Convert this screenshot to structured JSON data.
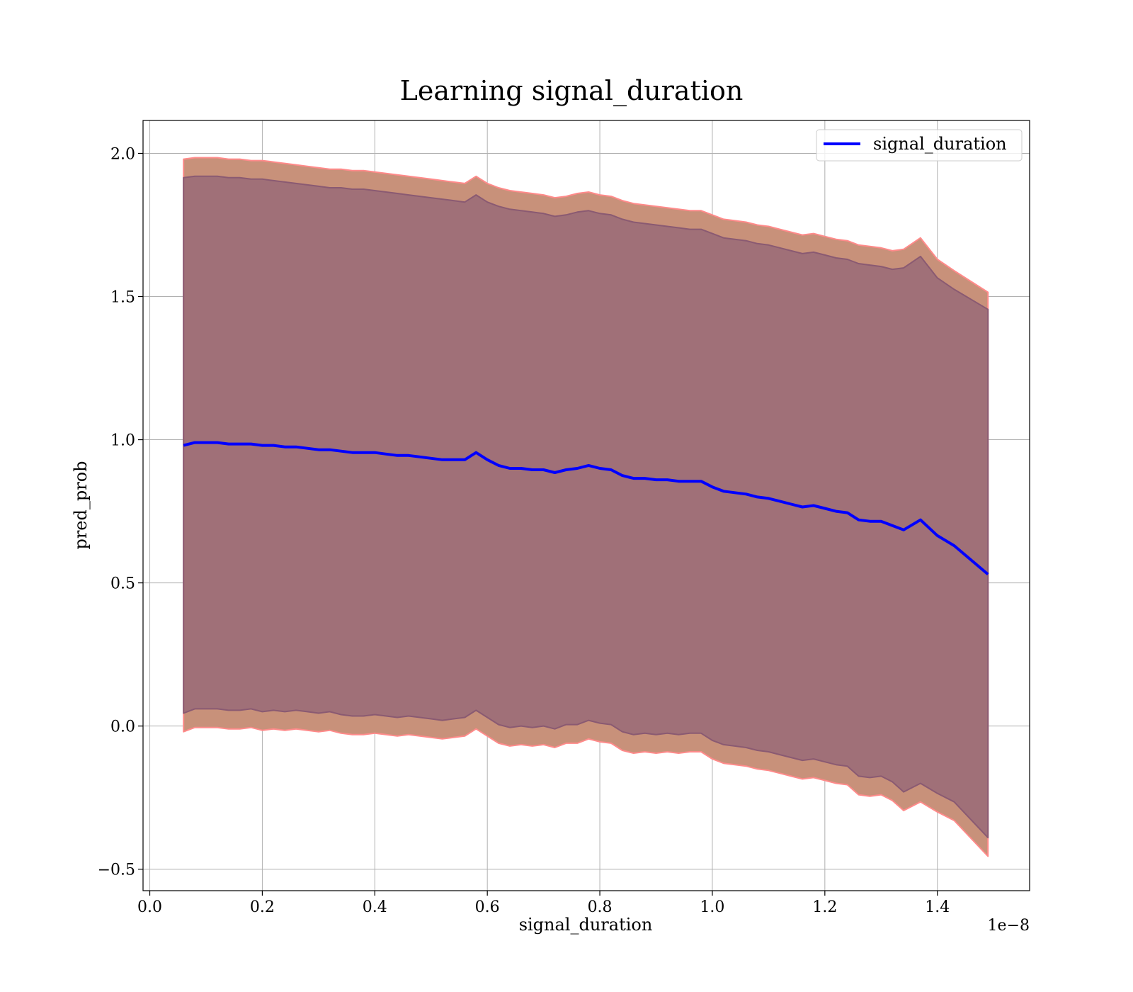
{
  "chart_data": {
    "type": "line",
    "title": "Learning signal_duration",
    "xlabel": "signal_duration",
    "ylabel": "pred_prob",
    "x_offset_text": "1e−8",
    "xlim": [
      -0.012,
      1.564
    ],
    "ylim": [
      -0.575,
      2.115
    ],
    "grid": true,
    "legend_placement": "top-right",
    "x_ticks": [
      {
        "value": 0.0,
        "label": "0.0"
      },
      {
        "value": 0.2,
        "label": "0.2"
      },
      {
        "value": 0.4,
        "label": "0.4"
      },
      {
        "value": 0.6,
        "label": "0.6"
      },
      {
        "value": 0.8,
        "label": "0.8"
      },
      {
        "value": 1.0,
        "label": "1.0"
      },
      {
        "value": 1.2,
        "label": "1.2"
      },
      {
        "value": 1.4,
        "label": "1.4"
      }
    ],
    "y_ticks": [
      {
        "value": -0.5,
        "label": "−0.5"
      },
      {
        "value": 0.0,
        "label": "0.0"
      },
      {
        "value": 0.5,
        "label": "0.5"
      },
      {
        "value": 1.0,
        "label": "1.0"
      },
      {
        "value": 1.5,
        "label": "1.5"
      },
      {
        "value": 2.0,
        "label": "2.0"
      }
    ],
    "series": [
      {
        "name": "signal_duration",
        "color": "#0000ff",
        "x": [
          0.06,
          0.08,
          0.1,
          0.12,
          0.14,
          0.16,
          0.18,
          0.2,
          0.22,
          0.24,
          0.26,
          0.28,
          0.3,
          0.32,
          0.34,
          0.36,
          0.38,
          0.4,
          0.42,
          0.44,
          0.46,
          0.48,
          0.5,
          0.52,
          0.54,
          0.56,
          0.58,
          0.6,
          0.62,
          0.64,
          0.66,
          0.68,
          0.7,
          0.72,
          0.74,
          0.76,
          0.78,
          0.8,
          0.82,
          0.84,
          0.86,
          0.88,
          0.9,
          0.92,
          0.94,
          0.96,
          0.98,
          1.0,
          1.02,
          1.04,
          1.06,
          1.08,
          1.1,
          1.12,
          1.14,
          1.16,
          1.18,
          1.2,
          1.22,
          1.24,
          1.26,
          1.28,
          1.3,
          1.32,
          1.34,
          1.37,
          1.4,
          1.43,
          1.49
        ],
        "y": [
          0.98,
          0.99,
          0.99,
          0.99,
          0.985,
          0.985,
          0.985,
          0.98,
          0.98,
          0.975,
          0.975,
          0.97,
          0.965,
          0.965,
          0.96,
          0.955,
          0.955,
          0.955,
          0.95,
          0.945,
          0.945,
          0.94,
          0.935,
          0.93,
          0.93,
          0.93,
          0.955,
          0.93,
          0.91,
          0.9,
          0.9,
          0.895,
          0.895,
          0.885,
          0.895,
          0.9,
          0.91,
          0.9,
          0.895,
          0.875,
          0.865,
          0.865,
          0.86,
          0.86,
          0.855,
          0.855,
          0.855,
          0.835,
          0.82,
          0.815,
          0.81,
          0.8,
          0.795,
          0.785,
          0.775,
          0.765,
          0.77,
          0.76,
          0.75,
          0.745,
          0.72,
          0.715,
          0.715,
          0.7,
          0.685,
          0.72,
          0.665,
          0.63,
          0.53
        ]
      }
    ],
    "bands": [
      {
        "description": "outer",
        "fill": "#c8917a",
        "edge": "#ff8a8a",
        "upper": [
          1.98,
          1.985,
          1.985,
          1.985,
          1.98,
          1.98,
          1.975,
          1.975,
          1.97,
          1.965,
          1.96,
          1.955,
          1.95,
          1.945,
          1.945,
          1.94,
          1.94,
          1.935,
          1.93,
          1.925,
          1.92,
          1.915,
          1.91,
          1.905,
          1.9,
          1.895,
          1.92,
          1.895,
          1.88,
          1.87,
          1.865,
          1.86,
          1.855,
          1.845,
          1.85,
          1.86,
          1.865,
          1.855,
          1.85,
          1.835,
          1.825,
          1.82,
          1.815,
          1.81,
          1.805,
          1.8,
          1.8,
          1.785,
          1.77,
          1.765,
          1.76,
          1.75,
          1.745,
          1.735,
          1.725,
          1.715,
          1.72,
          1.71,
          1.7,
          1.695,
          1.68,
          1.675,
          1.67,
          1.66,
          1.665,
          1.705,
          1.63,
          1.59,
          1.515
        ],
        "lower": [
          -0.02,
          -0.005,
          -0.005,
          -0.005,
          -0.01,
          -0.01,
          -0.005,
          -0.015,
          -0.01,
          -0.015,
          -0.01,
          -0.015,
          -0.02,
          -0.015,
          -0.025,
          -0.03,
          -0.03,
          -0.025,
          -0.03,
          -0.035,
          -0.03,
          -0.035,
          -0.04,
          -0.045,
          -0.04,
          -0.035,
          -0.01,
          -0.035,
          -0.06,
          -0.07,
          -0.065,
          -0.07,
          -0.065,
          -0.075,
          -0.06,
          -0.06,
          -0.045,
          -0.055,
          -0.06,
          -0.085,
          -0.095,
          -0.09,
          -0.095,
          -0.09,
          -0.095,
          -0.09,
          -0.09,
          -0.115,
          -0.13,
          -0.135,
          -0.14,
          -0.15,
          -0.155,
          -0.165,
          -0.175,
          -0.185,
          -0.18,
          -0.19,
          -0.2,
          -0.205,
          -0.24,
          -0.245,
          -0.24,
          -0.26,
          -0.295,
          -0.265,
          -0.3,
          -0.33,
          -0.455
        ]
      },
      {
        "description": "inner",
        "fill": "#a07078",
        "edge": "#8a5a72",
        "upper": [
          1.915,
          1.92,
          1.92,
          1.92,
          1.915,
          1.915,
          1.91,
          1.91,
          1.905,
          1.9,
          1.895,
          1.89,
          1.885,
          1.88,
          1.88,
          1.875,
          1.875,
          1.87,
          1.865,
          1.86,
          1.855,
          1.85,
          1.845,
          1.84,
          1.835,
          1.83,
          1.855,
          1.83,
          1.815,
          1.805,
          1.8,
          1.795,
          1.79,
          1.78,
          1.785,
          1.795,
          1.8,
          1.79,
          1.785,
          1.77,
          1.76,
          1.755,
          1.75,
          1.745,
          1.74,
          1.735,
          1.735,
          1.72,
          1.705,
          1.7,
          1.695,
          1.685,
          1.68,
          1.67,
          1.66,
          1.65,
          1.655,
          1.645,
          1.635,
          1.63,
          1.615,
          1.61,
          1.605,
          1.595,
          1.6,
          1.64,
          1.565,
          1.525,
          1.455
        ],
        "lower": [
          0.045,
          0.06,
          0.06,
          0.06,
          0.055,
          0.055,
          0.06,
          0.05,
          0.055,
          0.05,
          0.055,
          0.05,
          0.045,
          0.05,
          0.04,
          0.035,
          0.035,
          0.04,
          0.035,
          0.03,
          0.035,
          0.03,
          0.025,
          0.02,
          0.025,
          0.03,
          0.055,
          0.03,
          0.005,
          -0.005,
          0.0,
          -0.005,
          0.0,
          -0.01,
          0.005,
          0.005,
          0.02,
          0.01,
          0.005,
          -0.02,
          -0.03,
          -0.025,
          -0.03,
          -0.025,
          -0.03,
          -0.025,
          -0.025,
          -0.05,
          -0.065,
          -0.07,
          -0.075,
          -0.085,
          -0.09,
          -0.1,
          -0.11,
          -0.12,
          -0.115,
          -0.125,
          -0.135,
          -0.14,
          -0.175,
          -0.18,
          -0.175,
          -0.195,
          -0.23,
          -0.2,
          -0.235,
          -0.265,
          -0.39
        ]
      }
    ]
  }
}
